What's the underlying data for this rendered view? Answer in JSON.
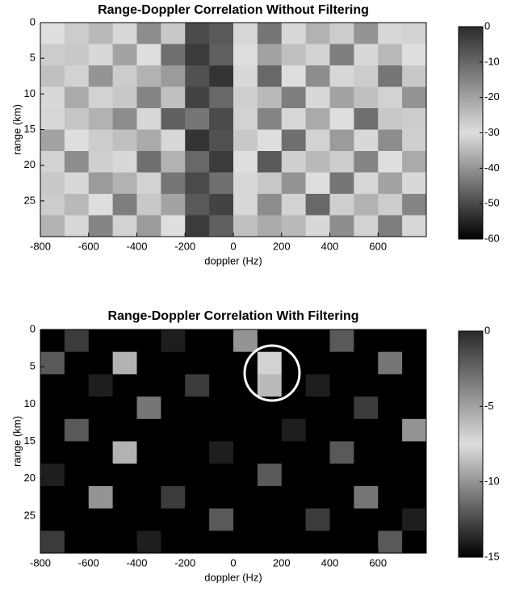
{
  "chart_data": [
    {
      "type": "heatmap",
      "title": "Range-Doppler Correlation Without Filtering",
      "xlabel": "doppler (Hz)",
      "ylabel": "range (km)",
      "x": [
        -750,
        -650,
        -550,
        -450,
        -350,
        -250,
        -150,
        -50,
        50,
        150,
        250,
        350,
        450,
        550,
        650,
        750
      ],
      "y": [
        1.5,
        4.5,
        7.5,
        10.5,
        13.5,
        16.5,
        19.5,
        22.5,
        25.5,
        28.5
      ],
      "values": [
        [
          -30,
          -27,
          -35,
          -29,
          -41,
          -33,
          -50,
          -48,
          -31,
          -44,
          -29,
          -36,
          -27,
          -40,
          -31,
          -28
        ],
        [
          -27,
          -33,
          -29,
          -38,
          -30,
          -45,
          -52,
          -47,
          -30,
          -38,
          -34,
          -28,
          -43,
          -29,
          -35,
          -30
        ],
        [
          -34,
          -28,
          -40,
          -27,
          -36,
          -39,
          -49,
          -53,
          -29,
          -46,
          -30,
          -41,
          -31,
          -27,
          -44,
          -33
        ],
        [
          -29,
          -37,
          -28,
          -33,
          -42,
          -34,
          -51,
          -46,
          -32,
          -35,
          -43,
          -29,
          -38,
          -34,
          -28,
          -40
        ],
        [
          -31,
          -26,
          -36,
          -41,
          -29,
          -47,
          -44,
          -50,
          -28,
          -42,
          -31,
          -37,
          -30,
          -45,
          -33,
          -27
        ],
        [
          -38,
          -30,
          -27,
          -34,
          -37,
          -31,
          -53,
          -49,
          -33,
          -30,
          -45,
          -28,
          -39,
          -29,
          -41,
          -32
        ],
        [
          -28,
          -41,
          -32,
          -29,
          -45,
          -36,
          -46,
          -52,
          -30,
          -48,
          -32,
          -35,
          -27,
          -42,
          -30,
          -37
        ],
        [
          -33,
          -29,
          -39,
          -36,
          -28,
          -44,
          -50,
          -45,
          -31,
          -33,
          -40,
          -30,
          -44,
          -31,
          -38,
          -29
        ],
        [
          -27,
          -35,
          -30,
          -43,
          -33,
          -38,
          -48,
          -51,
          -29,
          -41,
          -28,
          -46,
          -32,
          -36,
          -27,
          -42
        ],
        [
          -36,
          -31,
          -42,
          -28,
          -39,
          -30,
          -52,
          -47,
          -34,
          -37,
          -35,
          -29,
          -41,
          -28,
          -43,
          -31
        ]
      ],
      "xlim": [
        -800,
        800
      ],
      "ylim": [
        0,
        30
      ],
      "xticks": [
        -800,
        -600,
        -400,
        -200,
        0,
        200,
        400,
        600
      ],
      "yticks": [
        0,
        5,
        10,
        15,
        20,
        25
      ],
      "clim": [
        -60,
        0
      ],
      "cticks": [
        0,
        -10,
        -20,
        -30,
        -40,
        -50,
        -60
      ],
      "colormap": [
        "#000000",
        "#dedede",
        "#2a2a2a"
      ]
    },
    {
      "type": "heatmap",
      "title": "Range-Doppler Correlation With Filtering",
      "xlabel": "doppler (Hz)",
      "ylabel": "range (km)",
      "x": [
        -750,
        -650,
        -550,
        -450,
        -350,
        -250,
        -150,
        -50,
        50,
        150,
        250,
        350,
        450,
        550,
        650,
        750
      ],
      "y": [
        1.5,
        4.5,
        7.5,
        10.5,
        13.5,
        16.5,
        19.5,
        22.5,
        25.5,
        28.5
      ],
      "values": [
        [
          -15,
          -13,
          -15,
          -15,
          -15,
          -14,
          -15,
          -15,
          -10,
          -15,
          -15,
          -15,
          -12,
          -15,
          -15,
          -15
        ],
        [
          -12,
          -15,
          -15,
          -9,
          -15,
          -15,
          -15,
          -15,
          -15,
          -7,
          -15,
          -15,
          -15,
          -15,
          -11,
          -15
        ],
        [
          -15,
          -15,
          -14,
          -15,
          -15,
          -15,
          -13,
          -15,
          -15,
          -6,
          -15,
          -14,
          -15,
          -15,
          -15,
          -15
        ],
        [
          -15,
          -15,
          -15,
          -15,
          -11,
          -15,
          -15,
          -15,
          -15,
          -15,
          -15,
          -15,
          -15,
          -13,
          -15,
          -15
        ],
        [
          -15,
          -12,
          -15,
          -15,
          -15,
          -15,
          -15,
          -15,
          -15,
          -15,
          -14,
          -15,
          -15,
          -15,
          -15,
          -10
        ],
        [
          -15,
          -15,
          -15,
          -9,
          -15,
          -15,
          -15,
          -14,
          -15,
          -15,
          -15,
          -15,
          -12,
          -15,
          -15,
          -15
        ],
        [
          -14,
          -15,
          -15,
          -15,
          -15,
          -15,
          -15,
          -15,
          -15,
          -12,
          -15,
          -15,
          -15,
          -15,
          -15,
          -15
        ],
        [
          -15,
          -15,
          -10,
          -15,
          -15,
          -13,
          -15,
          -15,
          -15,
          -15,
          -15,
          -15,
          -15,
          -11,
          -15,
          -15
        ],
        [
          -15,
          -15,
          -15,
          -15,
          -15,
          -15,
          -15,
          -12,
          -15,
          -15,
          -15,
          -13,
          -15,
          -15,
          -15,
          -14
        ],
        [
          -13,
          -15,
          -15,
          -15,
          -14,
          -15,
          -15,
          -15,
          -15,
          -15,
          -15,
          -15,
          -15,
          -15,
          -12,
          -15
        ]
      ],
      "xlim": [
        -800,
        800
      ],
      "ylim": [
        0,
        30
      ],
      "xticks": [
        -800,
        -600,
        -400,
        -200,
        0,
        200,
        400,
        600
      ],
      "yticks": [
        0,
        5,
        10,
        15,
        20,
        25
      ],
      "clim": [
        -15,
        0
      ],
      "cticks": [
        0,
        -5,
        -10,
        -15
      ],
      "colormap": [
        "#000000",
        "#dedede",
        "#2a2a2a"
      ]
    }
  ]
}
